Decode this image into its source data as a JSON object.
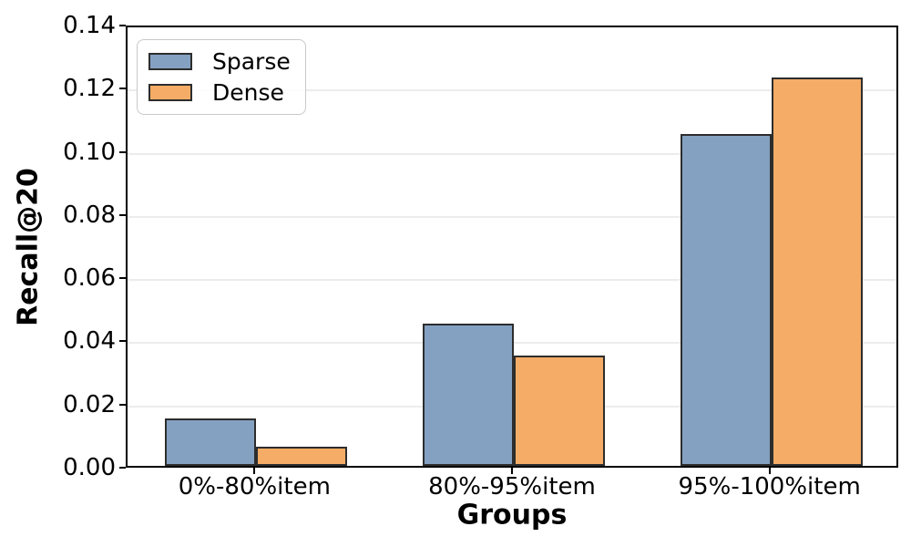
{
  "chart_data": {
    "type": "bar",
    "title": "",
    "xlabel": "Groups",
    "ylabel": "Recall@20",
    "categories": [
      "0%-80%item",
      "80%-95%item",
      "95%-100%item"
    ],
    "series": [
      {
        "name": "Sparse",
        "color": "#84a1c1",
        "values": [
          0.015,
          0.045,
          0.105
        ]
      },
      {
        "name": "Dense",
        "color": "#f4ac66",
        "values": [
          0.006,
          0.035,
          0.123
        ]
      }
    ],
    "ylim": [
      0,
      0.14
    ],
    "yticks": [
      0.0,
      0.02,
      0.04,
      0.06,
      0.08,
      0.1,
      0.12,
      0.14
    ],
    "ytick_decimals": 2,
    "grid": "horizontal",
    "legend_position": "upper-left",
    "colors": {
      "bar_edge": "#2d2d2d",
      "grid": "#ececec",
      "spine": "#000000",
      "legend_border": "#c9c9c9"
    }
  }
}
